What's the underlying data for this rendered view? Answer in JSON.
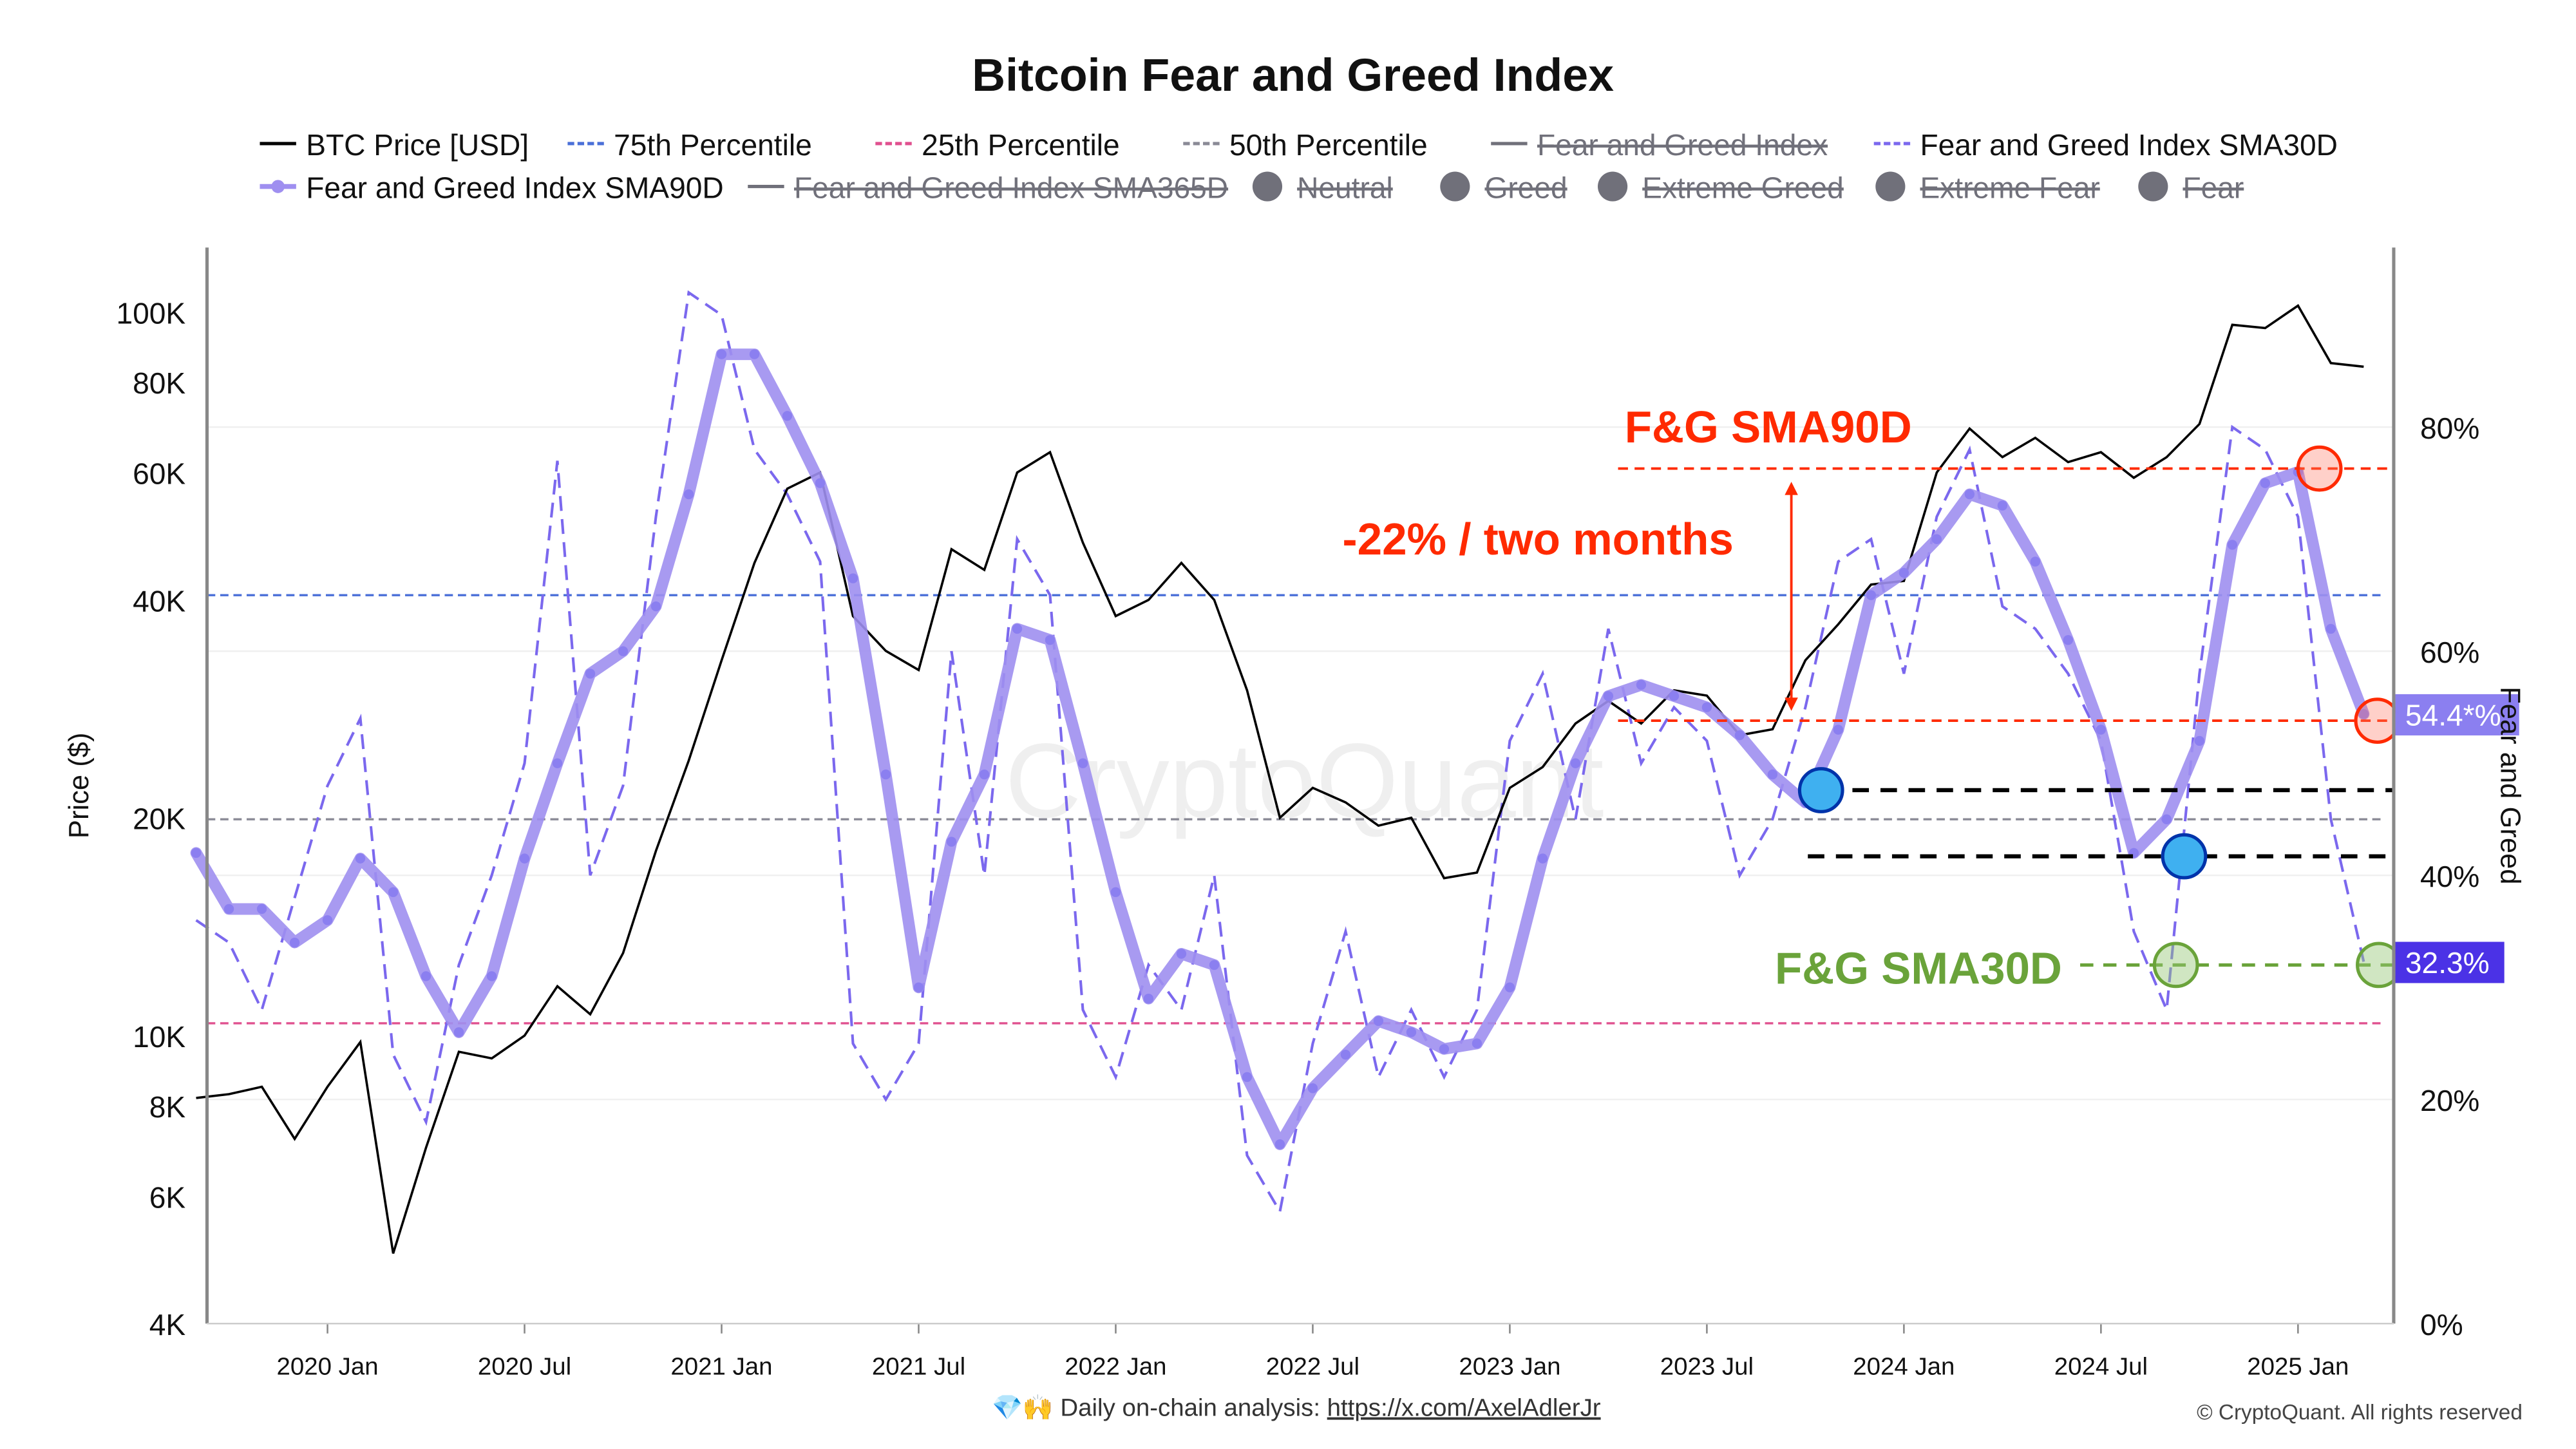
{
  "chart_data": {
    "type": "line",
    "title": "Bitcoin Fear and Greed Index",
    "ylabel_left": "Price ($)",
    "ylabel_right": "Fear and Greed",
    "y_left_scale": "log",
    "ylim_left": [
      4000,
      140000
    ],
    "ylim_right": [
      0,
      100
    ],
    "xlim": [
      "2019-09",
      "2025-03"
    ],
    "grid": true,
    "legend_placement": "top",
    "x_ticks": [
      {
        "label": "2020 Jan",
        "date": "2020-01"
      },
      {
        "label": "2020 Jul",
        "date": "2020-07"
      },
      {
        "label": "2021 Jan",
        "date": "2021-01"
      },
      {
        "label": "2021 Jul",
        "date": "2021-07"
      },
      {
        "label": "2022 Jan",
        "date": "2022-01"
      },
      {
        "label": "2022 Jul",
        "date": "2022-07"
      },
      {
        "label": "2023 Jan",
        "date": "2023-01"
      },
      {
        "label": "2023 Jul",
        "date": "2023-07"
      },
      {
        "label": "2024 Jan",
        "date": "2024-01"
      },
      {
        "label": "2024 Jul",
        "date": "2024-07"
      },
      {
        "label": "2025 Jan",
        "date": "2025-01"
      }
    ],
    "y_left_ticks": [
      {
        "label": "4K",
        "value": 4000
      },
      {
        "label": "6K",
        "value": 6000
      },
      {
        "label": "8K",
        "value": 8000
      },
      {
        "label": "10K",
        "value": 10000
      },
      {
        "label": "20K",
        "value": 20000
      },
      {
        "label": "40K",
        "value": 40000
      },
      {
        "label": "60K",
        "value": 60000
      },
      {
        "label": "80K",
        "value": 80000
      },
      {
        "label": "100K",
        "value": 100000
      }
    ],
    "y_right_ticks": [
      {
        "label": "0%",
        "value": 0
      },
      {
        "label": "20%",
        "value": 20
      },
      {
        "label": "40%",
        "value": 40
      },
      {
        "label": "60%",
        "value": 60
      },
      {
        "label": "80%",
        "value": 80
      }
    ],
    "legend": [
      {
        "label": "BTC Price [USD]",
        "color": "#000000",
        "style": "solid",
        "hidden": false
      },
      {
        "label": "75th Percentile",
        "color": "#4a6fd8",
        "style": "dashed",
        "hidden": false
      },
      {
        "label": "25th Percentile",
        "color": "#e0508f",
        "style": "dashed",
        "hidden": false
      },
      {
        "label": "50th Percentile",
        "color": "#8a8a96",
        "style": "dashed",
        "hidden": false
      },
      {
        "label": "Fear and Greed Index",
        "color": "#70707a",
        "style": "solid",
        "hidden": true
      },
      {
        "label": "Fear and Greed Index SMA30D",
        "color": "#7b68ee",
        "style": "dashed",
        "hidden": false
      },
      {
        "label": "Fear and Greed Index SMA90D",
        "color": "#9f8ff0",
        "style": "dots",
        "hidden": false
      },
      {
        "label": "Fear and Greed Index SMA365D",
        "color": "#70707a",
        "style": "solid",
        "hidden": true
      },
      {
        "label": "Neutral",
        "color": "#70707a",
        "style": "circle",
        "hidden": true
      },
      {
        "label": "Greed",
        "color": "#70707a",
        "style": "circle",
        "hidden": true
      },
      {
        "label": "Extreme Greed",
        "color": "#70707a",
        "style": "circle",
        "hidden": true
      },
      {
        "label": "Extreme Fear",
        "color": "#70707a",
        "style": "circle",
        "hidden": true
      },
      {
        "label": "Fear",
        "color": "#70707a",
        "style": "circle",
        "hidden": true
      }
    ],
    "percentiles": {
      "p75": 65,
      "p50": 45,
      "p25": 26.8
    },
    "series": [
      {
        "name": "BTC Price [USD]",
        "axis": "left",
        "color": "#000000",
        "x": [
          "2019-09",
          "2019-10",
          "2019-11",
          "2019-12",
          "2020-01",
          "2020-02",
          "2020-03",
          "2020-04",
          "2020-05",
          "2020-06",
          "2020-07",
          "2020-08",
          "2020-09",
          "2020-10",
          "2020-11",
          "2020-12",
          "2021-01",
          "2021-02",
          "2021-03",
          "2021-04",
          "2021-05",
          "2021-06",
          "2021-07",
          "2021-08",
          "2021-09",
          "2021-10",
          "2021-11",
          "2021-12",
          "2022-01",
          "2022-02",
          "2022-03",
          "2022-04",
          "2022-05",
          "2022-06",
          "2022-07",
          "2022-08",
          "2022-09",
          "2022-10",
          "2022-11",
          "2022-12",
          "2023-01",
          "2023-02",
          "2023-03",
          "2023-04",
          "2023-05",
          "2023-06",
          "2023-07",
          "2023-08",
          "2023-09",
          "2023-10",
          "2023-11",
          "2023-12",
          "2024-01",
          "2024-02",
          "2024-03",
          "2024-04",
          "2024-05",
          "2024-06",
          "2024-07",
          "2024-08",
          "2024-09",
          "2024-10",
          "2024-11",
          "2024-12",
          "2025-01",
          "2025-02",
          "2025-03"
        ],
        "values": [
          8200,
          8300,
          8500,
          7200,
          8500,
          9800,
          5000,
          7000,
          9500,
          9300,
          10000,
          11700,
          10700,
          13000,
          18000,
          24000,
          33000,
          45000,
          57000,
          60000,
          38000,
          34000,
          32000,
          47000,
          44000,
          60000,
          64000,
          48000,
          38000,
          40000,
          45000,
          40000,
          30000,
          20000,
          22000,
          21000,
          19500,
          20000,
          16500,
          16800,
          22000,
          23500,
          27000,
          29000,
          27000,
          30000,
          29500,
          26000,
          26500,
          33000,
          37000,
          42000,
          42500,
          60000,
          69000,
          63000,
          67000,
          62000,
          64000,
          59000,
          63000,
          70000,
          96000,
          95000,
          102000,
          85000,
          84000
        ]
      },
      {
        "name": "Fear and Greed Index SMA30D",
        "axis": "right",
        "color": "#7b68ee",
        "values": [
          36,
          34,
          28,
          38,
          48,
          54,
          24,
          18,
          32,
          40,
          50,
          77,
          40,
          48,
          72,
          92,
          90,
          78,
          74,
          68,
          25,
          20,
          25,
          60,
          40,
          70,
          65,
          28,
          22,
          32,
          28,
          40,
          15,
          10,
          25,
          35,
          22,
          28,
          22,
          28,
          52,
          58,
          45,
          62,
          50,
          55,
          52,
          40,
          45,
          55,
          68,
          70,
          58,
          72,
          78,
          64,
          62,
          58,
          52,
          35,
          28,
          58,
          80,
          78,
          72,
          45,
          32.3
        ]
      },
      {
        "name": "Fear and Greed Index SMA90D",
        "axis": "right",
        "color": "#9f8ff0",
        "values": [
          42,
          37,
          37,
          34,
          36,
          41.5,
          38.5,
          31,
          26,
          31,
          41.5,
          50,
          58,
          60,
          64,
          74,
          86.5,
          86.5,
          81,
          75,
          66.5,
          49,
          30,
          43,
          49,
          62,
          61,
          50,
          38.5,
          29,
          33,
          32,
          22,
          16,
          21,
          24,
          27,
          26,
          24.5,
          25,
          30,
          41.5,
          50,
          56,
          57,
          56,
          55,
          52.5,
          49,
          46.5,
          53,
          65,
          67,
          70,
          74,
          73,
          68,
          61,
          53,
          42,
          45,
          52,
          69.5,
          75,
          76,
          62,
          54.4
        ]
      }
    ],
    "last_value_labels": [
      {
        "series": "Fear and Greed Index SMA90D",
        "text": "54.4*%",
        "value": 54.4,
        "color": "#8b7ff0"
      },
      {
        "series": "Fear and Greed Index SMA30D",
        "text": "32.3%",
        "value": 32.3,
        "color": "#4b32e6"
      }
    ],
    "annotations": {
      "sma90_label": "F&G SMA90D",
      "change_label": "-22% / two months",
      "sma30_label": "F&G SMA30D",
      "sma90_levels": [
        76.3,
        53.8
      ],
      "black_levels": [
        47.6,
        41.7
      ],
      "sma30_level": 32,
      "red_color": "#ff2a00",
      "green_color": "#6aa33a"
    }
  },
  "watermark": "CryptoQuant",
  "footer": {
    "emoji": "💎🙌",
    "text": "Daily on-chain analysis: ",
    "link": "https://x.com/AxelAdlerJr",
    "copyright": "© CryptoQuant. All rights reserved"
  }
}
